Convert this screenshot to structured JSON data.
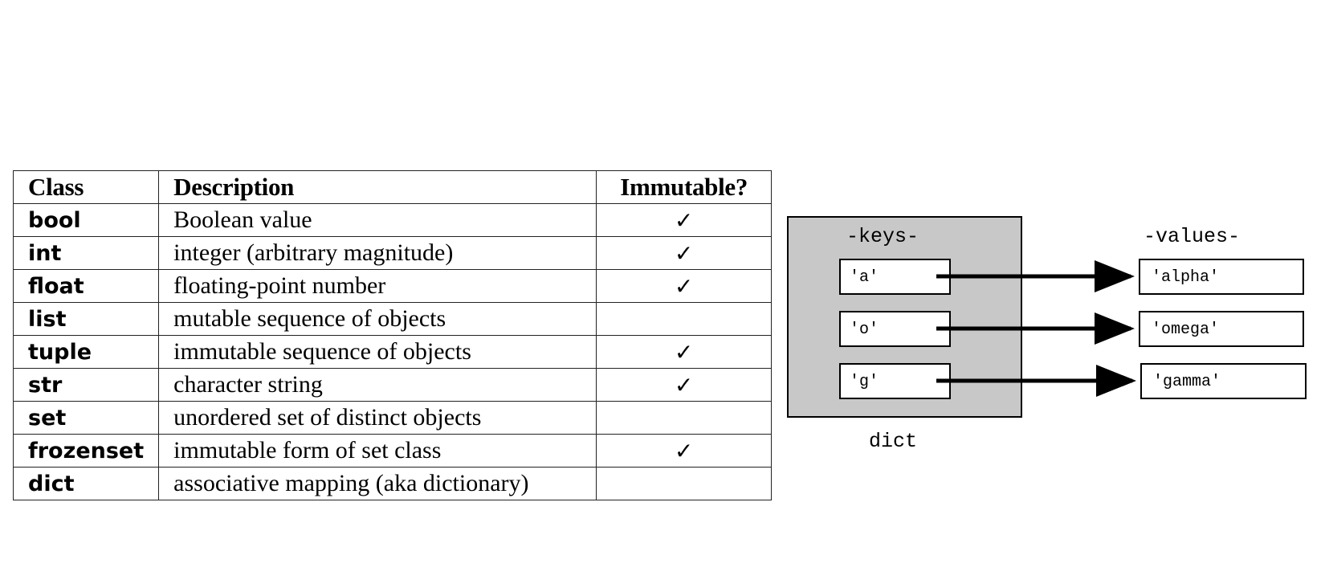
{
  "table": {
    "headers": [
      "Class",
      "Description",
      "Immutable?"
    ],
    "rows": [
      {
        "cls": "bool",
        "desc": "Boolean value",
        "immutable": "✓"
      },
      {
        "cls": "int",
        "desc": "integer (arbitrary magnitude)",
        "immutable": "✓"
      },
      {
        "cls": "float",
        "desc": "floating-point number",
        "immutable": "✓"
      },
      {
        "cls": "list",
        "desc": "mutable sequence of objects",
        "immutable": ""
      },
      {
        "cls": "tuple",
        "desc": "immutable sequence of objects",
        "immutable": "✓"
      },
      {
        "cls": "str",
        "desc": "character string",
        "immutable": "✓"
      },
      {
        "cls": "set",
        "desc": "unordered set of distinct objects",
        "immutable": ""
      },
      {
        "cls": "frozenset",
        "desc": "immutable form of set class",
        "immutable": "✓"
      },
      {
        "cls": "dict",
        "desc": "associative mapping (aka dictionary)",
        "immutable": ""
      }
    ]
  },
  "diagram": {
    "keys_label": "-keys-",
    "values_label": "-values-",
    "container_label": "dict",
    "container_fill": "#c8c8c8",
    "pairs": [
      {
        "key": "'a'",
        "value": "'alpha'"
      },
      {
        "key": "'o'",
        "value": "'omega'"
      },
      {
        "key": "'g'",
        "value": "'gamma'"
      }
    ]
  }
}
